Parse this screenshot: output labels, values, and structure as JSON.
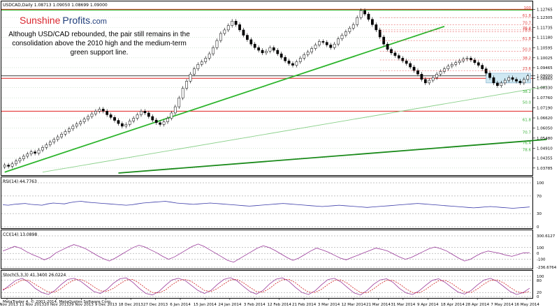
{
  "header": "USDCAD,Daily  1.08713 1.09050 1.08699 1.09000",
  "brand": {
    "part1": "Sunshine",
    "part2": "Profits",
    "part3": ".com"
  },
  "annotation": [
    "Although USD/CAD rebounded, the pair still remains in the",
    "consolidation above the 2010 high and the medium-term",
    "green support line."
  ],
  "copyright": "MetaTrader 4, © 2001-2014, MetaQuotes Software Corp.",
  "colors": {
    "support_line": "#2db52d",
    "trend_line": "#1a8a1a",
    "resistance_red": "#e02020",
    "fib_red": "#e04040",
    "fib_green": "#38b038",
    "consolidation_box": "#cfe8f2",
    "rsi_line": "#3a3aa8",
    "cci_line": "#9a3a9a",
    "stoch_main": "#9a3a9a",
    "stoch_signal": "#d02020"
  },
  "chart_data": [
    {
      "type": "candlestick",
      "panel": "price",
      "symbol": "USDCAD",
      "timeframe": "Daily",
      "ohlc_last": {
        "open": 1.08713,
        "high": 1.0905,
        "low": 1.08699,
        "close": 1.09
      },
      "ylim": [
        1.035,
        1.129
      ],
      "y_ticks": [
        "1.12765",
        "1.12305",
        "1.11735",
        "1.11180",
        "1.10595",
        "1.10025",
        "1.09465",
        "1.09000",
        "1.08860",
        "1.08330",
        "1.07760",
        "1.07190",
        "1.06620",
        "1.06050",
        "1.05480",
        "1.04910",
        "1.04355",
        "1.03785"
      ],
      "x_ticks": [
        "1 Nov 2013",
        "11 Nov 2013",
        "20 Nov 2013",
        "29 Nov 2013",
        "9 Dec 2013",
        "18 Dec 2013",
        "27 Dec 2013",
        "6 Jan 2014",
        "15 Jan 2014",
        "24 Jan 2014",
        "3 Feb 2014",
        "12 Feb 2014",
        "21 Feb 2014",
        "3 Mar 2014",
        "12 Mar 2014",
        "21 Mar 2014",
        "31 Mar 2014",
        "9 Apr 2014",
        "18 Apr 2014",
        "28 Apr 2014",
        "7 May 2014",
        "16 May 2014"
      ],
      "closes": [
        1.0395,
        1.0388,
        1.0402,
        1.0418,
        1.043,
        1.0445,
        1.0458,
        1.047,
        1.0462,
        1.048,
        1.0495,
        1.051,
        1.0525,
        1.054,
        1.0555,
        1.057,
        1.0585,
        1.06,
        1.0615,
        1.0628,
        1.064,
        1.0655,
        1.067,
        1.0685,
        1.07,
        1.0712,
        1.07,
        1.068,
        1.0665,
        1.0648,
        1.063,
        1.0615,
        1.0625,
        1.0645,
        1.066,
        1.068,
        1.07,
        1.069,
        1.067,
        1.065,
        1.0635,
        1.0625,
        1.064,
        1.066,
        1.069,
        1.0725,
        1.0775,
        1.083,
        1.087,
        1.091,
        1.094,
        1.0965,
        1.098,
        1.1,
        1.1025,
        1.106,
        1.11,
        1.114,
        1.116,
        1.1185,
        1.121,
        1.119,
        1.116,
        1.113,
        1.1105,
        1.108,
        1.106,
        1.1045,
        1.103,
        1.104,
        1.106,
        1.1045,
        1.1025,
        1.1005,
        1.0985,
        1.097,
        1.096,
        1.098,
        1.1,
        1.102,
        1.1035,
        1.1055,
        1.1075,
        1.1095,
        1.109,
        1.1075,
        1.106,
        1.108,
        1.111,
        1.113,
        1.115,
        1.117,
        1.119,
        1.123,
        1.127,
        1.125,
        1.122,
        1.119,
        1.116,
        1.112,
        1.108,
        1.105,
        1.103,
        1.1015,
        1.1,
        1.0985,
        1.097,
        1.095,
        1.093,
        1.091,
        1.088,
        1.086,
        1.0875,
        1.089,
        1.091,
        1.0925,
        1.094,
        1.0955,
        1.0965,
        1.0975,
        1.0985,
        1.0995,
        1.1,
        1.099,
        1.0975,
        1.096,
        1.094,
        1.0915,
        1.089,
        1.086,
        1.0845,
        1.086,
        1.0875,
        1.089,
        1.088,
        1.087,
        1.086,
        1.088,
        1.09
      ],
      "horizontal_levels": [
        {
          "value": 1.12765,
          "label": "100",
          "color": "red"
        },
        {
          "value": 1.09,
          "label": "",
          "color": "black"
        },
        {
          "value": 1.0886,
          "label": "",
          "color": "red"
        },
        {
          "value": 1.07,
          "label": "",
          "color": "red"
        }
      ],
      "fib_left_labels": [
        "50.0",
        "61.8",
        "70.7",
        "76.4",
        "78.6"
      ],
      "fib_right_labels": [
        "100",
        "61.8",
        "70.7",
        "76.4",
        "78.6",
        "61.8",
        "50.0",
        "38.2",
        "23.6"
      ],
      "fib_lower_labels": [
        "50.0",
        "38.2",
        "61.8",
        "70.7",
        "76.4",
        "78.6"
      ],
      "trend_lines": [
        {
          "name": "medium-term support",
          "from": [
            0,
            1.0355
          ],
          "to": [
            116,
            1.118
          ]
        },
        {
          "name": "thin support",
          "from": [
            10,
            1.0355
          ],
          "to": [
            143,
            1.084
          ]
        },
        {
          "name": "long-term support",
          "from": [
            30,
            1.035
          ],
          "to": [
            143,
            1.054
          ]
        }
      ]
    },
    {
      "type": "line",
      "panel": "RSI",
      "label": "RSI(14) 44.7763",
      "value": 44.7763,
      "y_ticks": [
        "100",
        "70",
        "30",
        "0"
      ],
      "ylim": [
        0,
        100
      ],
      "values": [
        50,
        49,
        51,
        52,
        53,
        51,
        50,
        49,
        52,
        54,
        53,
        52,
        55,
        57,
        58,
        56,
        55,
        54,
        53,
        52,
        51,
        50,
        49,
        50,
        52,
        54,
        55,
        56,
        57,
        58,
        56,
        54,
        53,
        52,
        51,
        52,
        53,
        54,
        53,
        52,
        51,
        50,
        49,
        48,
        47,
        48,
        49,
        50,
        51,
        52,
        53,
        52,
        51,
        50,
        49,
        48,
        47,
        46,
        47,
        48,
        49,
        48,
        47,
        46,
        45,
        44,
        45,
        46,
        47,
        48,
        49,
        50,
        51,
        52,
        53,
        52,
        51,
        50,
        49,
        48,
        47,
        46,
        45,
        44,
        43,
        44,
        45,
        46,
        45,
        44,
        43,
        42,
        43,
        44,
        45
      ]
    },
    {
      "type": "line",
      "panel": "CCI",
      "label": "CCI(14) 13.0898",
      "value": 13.0898,
      "y_ticks": [
        "300.6127",
        "100",
        "0",
        "-100",
        "-236.6764"
      ],
      "ylim": [
        -236.6764,
        300.6127
      ],
      "values": [
        40,
        80,
        120,
        90,
        30,
        -20,
        -60,
        -110,
        -70,
        10,
        60,
        110,
        150,
        120,
        80,
        20,
        -40,
        -90,
        -130,
        -80,
        -20,
        40,
        100,
        140,
        110,
        60,
        10,
        -50,
        -100,
        -60,
        0,
        60,
        120,
        160,
        120,
        60,
        0,
        -60,
        -120,
        -150,
        -90,
        -30,
        30,
        90,
        130,
        100,
        50,
        -10,
        -70,
        -120,
        -80,
        -20,
        40,
        90,
        60,
        20,
        -30,
        -80,
        -110,
        -70,
        -30,
        10,
        50,
        90,
        70,
        40,
        -10,
        -60,
        -100,
        -70,
        -20,
        30,
        80,
        110,
        80,
        40,
        -20,
        -80,
        -130,
        -100,
        -40,
        10,
        40,
        20,
        0,
        -30,
        -50,
        -20,
        10,
        13
      ]
    },
    {
      "type": "line",
      "panel": "Stochastic",
      "label": "Stoch(5,3,3) 41.3400 26.0224",
      "main_value": 41.34,
      "signal_value": 26.0224,
      "y_ticks": [
        "100",
        "80",
        "20",
        "0"
      ],
      "ylim": [
        0,
        100
      ],
      "main": [
        30,
        55,
        80,
        90,
        70,
        40,
        20,
        10,
        30,
        60,
        85,
        90,
        75,
        50,
        25,
        15,
        35,
        65,
        88,
        92,
        70,
        40,
        15,
        8,
        25,
        55,
        82,
        90,
        80,
        55,
        30,
        15,
        30,
        60,
        85,
        93,
        78,
        50,
        25,
        12,
        30,
        62,
        86,
        92,
        75,
        45,
        20,
        10,
        28,
        58,
        84,
        90,
        72,
        44,
        18,
        8,
        30,
        60,
        82,
        88,
        70,
        40,
        18,
        10,
        28,
        55,
        80,
        88,
        70,
        45,
        22,
        12,
        30,
        58,
        82,
        90,
        75,
        50,
        25,
        10,
        20,
        41
      ],
      "signal": [
        35,
        45,
        65,
        82,
        80,
        60,
        40,
        22,
        22,
        40,
        65,
        82,
        85,
        70,
        48,
        28,
        26,
        40,
        63,
        82,
        85,
        65,
        40,
        20,
        18,
        32,
        58,
        78,
        85,
        75,
        52,
        30,
        25,
        40,
        62,
        82,
        85,
        68,
        45,
        25,
        22,
        40,
        65,
        83,
        85,
        68,
        42,
        22,
        20,
        36,
        60,
        80,
        82,
        65,
        40,
        20,
        18,
        38,
        62,
        80,
        80,
        62,
        38,
        20,
        18,
        35,
        58,
        78,
        80,
        65,
        42,
        22,
        20,
        38,
        62,
        80,
        82,
        68,
        45,
        25,
        18,
        26
      ]
    }
  ]
}
